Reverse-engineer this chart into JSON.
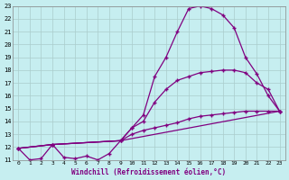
{
  "xlabel": "Windchill (Refroidissement éolien,°C)",
  "bg_color": "#c6eef0",
  "grid_color": "#aacccc",
  "line_color": "#800080",
  "xlim": [
    -0.5,
    23.5
  ],
  "ylim": [
    11,
    23
  ],
  "yticks": [
    11,
    12,
    13,
    14,
    15,
    16,
    17,
    18,
    19,
    20,
    21,
    22,
    23
  ],
  "xticks": [
    0,
    1,
    2,
    3,
    4,
    5,
    6,
    7,
    8,
    9,
    10,
    11,
    12,
    13,
    14,
    15,
    16,
    17,
    18,
    19,
    20,
    21,
    22,
    23
  ],
  "series": [
    {
      "x": [
        0,
        1,
        2,
        3,
        4,
        5,
        6,
        7,
        8,
        9,
        10,
        11,
        12,
        13,
        14,
        15,
        16,
        17,
        18,
        19,
        20,
        21,
        22,
        23
      ],
      "y": [
        11.9,
        11.0,
        11.1,
        12.2,
        11.2,
        11.1,
        11.3,
        11.0,
        11.5,
        12.5,
        13.5,
        14.5,
        17.5,
        19.0,
        21.0,
        22.8,
        23.0,
        22.8,
        22.3,
        21.3,
        19.0,
        17.7,
        16.0,
        14.8
      ]
    },
    {
      "x": [
        0,
        3,
        9,
        10,
        11,
        12,
        13,
        14,
        15,
        16,
        17,
        18,
        19,
        20,
        21,
        22,
        23
      ],
      "y": [
        11.9,
        12.2,
        12.5,
        13.5,
        14.0,
        15.5,
        16.5,
        17.2,
        17.5,
        17.8,
        17.9,
        18.0,
        18.0,
        17.8,
        17.0,
        16.5,
        14.8
      ]
    },
    {
      "x": [
        0,
        3,
        9,
        10,
        11,
        12,
        13,
        14,
        15,
        16,
        17,
        18,
        19,
        20,
        21,
        22,
        23
      ],
      "y": [
        11.9,
        12.2,
        12.5,
        13.0,
        13.3,
        13.5,
        13.7,
        13.9,
        14.2,
        14.4,
        14.5,
        14.6,
        14.7,
        14.8,
        14.8,
        14.8,
        14.8
      ]
    },
    {
      "x": [
        0,
        3,
        9,
        23
      ],
      "y": [
        11.9,
        12.2,
        12.5,
        14.8
      ]
    }
  ]
}
